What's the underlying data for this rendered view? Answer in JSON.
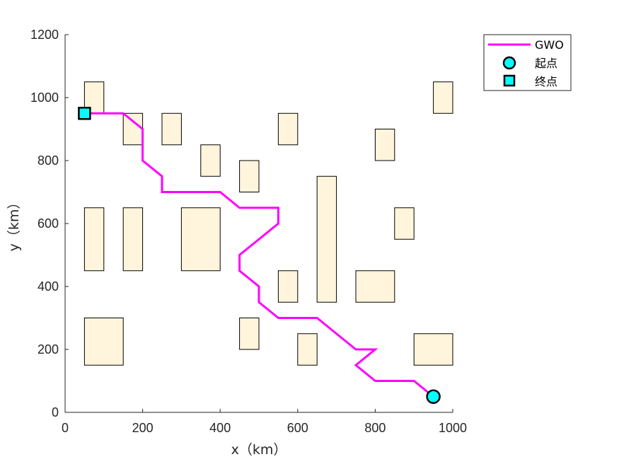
{
  "chart_data": {
    "type": "line",
    "xlabel": "x（km）",
    "ylabel": "y（km）",
    "xlim": [
      0,
      1000
    ],
    "ylim": [
      0,
      1200
    ],
    "xticks": [
      0,
      200,
      400,
      600,
      800,
      1000
    ],
    "yticks": [
      0,
      200,
      400,
      600,
      800,
      1000,
      1200
    ],
    "grid": false,
    "legend_position": "top-right",
    "colors": {
      "path": "#ff00ff",
      "marker_fill": "#00ffff",
      "obstacle_fill": "#fff5dc",
      "obstacle_edge": "#000000",
      "axis": "#262626"
    },
    "series": [
      {
        "name": "GWO",
        "x": [
          50,
          150,
          200,
          200,
          250,
          250,
          400,
          450,
          550,
          550,
          450,
          450,
          500,
          500,
          550,
          650,
          750,
          800,
          750,
          800,
          900,
          950
        ],
        "y": [
          950,
          950,
          900,
          800,
          750,
          700,
          700,
          650,
          650,
          600,
          500,
          450,
          400,
          350,
          300,
          300,
          200,
          200,
          150,
          100,
          100,
          50
        ]
      }
    ],
    "start": {
      "name": "起点",
      "x": 950,
      "y": 50,
      "marker": "circle"
    },
    "end": {
      "name": "终点",
      "x": 50,
      "y": 950,
      "marker": "square"
    },
    "obstacles": [
      {
        "x0": 50,
        "x1": 100,
        "y0": 950,
        "y1": 1050
      },
      {
        "x0": 150,
        "x1": 200,
        "y0": 850,
        "y1": 950
      },
      {
        "x0": 250,
        "x1": 300,
        "y0": 850,
        "y1": 950
      },
      {
        "x0": 350,
        "x1": 400,
        "y0": 750,
        "y1": 850
      },
      {
        "x0": 450,
        "x1": 500,
        "y0": 700,
        "y1": 800
      },
      {
        "x0": 550,
        "x1": 600,
        "y0": 850,
        "y1": 950
      },
      {
        "x0": 800,
        "x1": 850,
        "y0": 800,
        "y1": 900
      },
      {
        "x0": 950,
        "x1": 1000,
        "y0": 950,
        "y1": 1050
      },
      {
        "x0": 50,
        "x1": 100,
        "y0": 450,
        "y1": 650
      },
      {
        "x0": 150,
        "x1": 200,
        "y0": 450,
        "y1": 650
      },
      {
        "x0": 300,
        "x1": 400,
        "y0": 450,
        "y1": 650
      },
      {
        "x0": 650,
        "x1": 700,
        "y0": 350,
        "y1": 750
      },
      {
        "x0": 850,
        "x1": 900,
        "y0": 550,
        "y1": 650
      },
      {
        "x0": 550,
        "x1": 600,
        "y0": 350,
        "y1": 450
      },
      {
        "x0": 750,
        "x1": 850,
        "y0": 350,
        "y1": 450
      },
      {
        "x0": 50,
        "x1": 150,
        "y0": 150,
        "y1": 300
      },
      {
        "x0": 450,
        "x1": 500,
        "y0": 200,
        "y1": 300
      },
      {
        "x0": 600,
        "x1": 650,
        "y0": 150,
        "y1": 250
      },
      {
        "x0": 900,
        "x1": 1000,
        "y0": 150,
        "y1": 250
      }
    ]
  }
}
